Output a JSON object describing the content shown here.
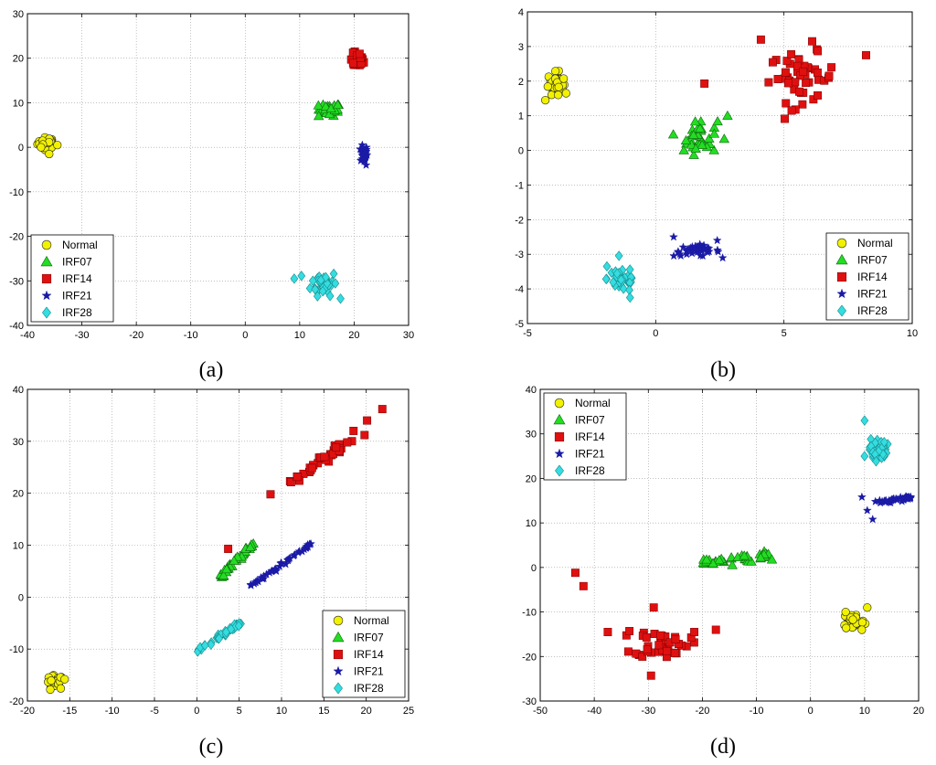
{
  "figure_labels": [
    "(a)",
    "(b)",
    "(c)",
    "(d)"
  ],
  "colors": {
    "Normal": "#f2f200",
    "IRF07": "#22dd22",
    "IRF14": "#e01010",
    "IRF21": "#1a1aa6",
    "IRF28": "#33dde0"
  },
  "chart_data": [
    {
      "type": "scatter",
      "id": "a",
      "label": "(a)",
      "xlim": [
        -40,
        30
      ],
      "ylim": [
        -40,
        30
      ],
      "xticks": [
        -40,
        -30,
        -20,
        -10,
        0,
        10,
        20,
        30
      ],
      "yticks": [
        -40,
        -30,
        -20,
        -10,
        0,
        10,
        20,
        30
      ],
      "legend_position": "bottom-left",
      "series": [
        {
          "name": "Normal",
          "marker": "circle",
          "center": [
            -36.5,
            1
          ],
          "spread": [
            0.8,
            0.6
          ],
          "count": 35,
          "extra": [
            [
              -34.5,
              0.5
            ],
            [
              -36,
              -1.5
            ],
            [
              -37.5,
              0
            ]
          ]
        },
        {
          "name": "IRF07",
          "marker": "triangle",
          "center": [
            15.5,
            8.5
          ],
          "spread": [
            1.0,
            0.7
          ],
          "count": 30,
          "extra": [
            [
              13.5,
              7
            ],
            [
              17,
              9.5
            ]
          ]
        },
        {
          "name": "IRF14",
          "marker": "square",
          "center": [
            20.5,
            19.5
          ],
          "spread": [
            0.6,
            0.8
          ],
          "count": 40,
          "extra": [
            [
              21,
              21
            ]
          ]
        },
        {
          "name": "IRF21",
          "marker": "star",
          "center": [
            21.8,
            -1.5
          ],
          "spread": [
            0.3,
            1.0
          ],
          "count": 40,
          "extra": [
            [
              22.2,
              -4
            ],
            [
              21.5,
              0.5
            ]
          ]
        },
        {
          "name": "IRF28",
          "marker": "diamond",
          "center": [
            14.5,
            -30.5
          ],
          "spread": [
            1.2,
            1.4
          ],
          "count": 40,
          "extra": [
            [
              9,
              -29.5
            ],
            [
              17.5,
              -34
            ]
          ]
        }
      ]
    },
    {
      "type": "scatter",
      "id": "b",
      "label": "(b)",
      "xlim": [
        -5,
        10
      ],
      "ylim": [
        -5,
        4
      ],
      "xticks": [
        -5,
        0,
        5,
        10
      ],
      "yticks": [
        -5,
        -4,
        -3,
        -2,
        -1,
        0,
        1,
        2,
        3,
        4
      ],
      "legend_position": "bottom-right",
      "series": [
        {
          "name": "Normal",
          "marker": "circle",
          "center": [
            -3.9,
            1.95
          ],
          "spread": [
            0.15,
            0.15
          ],
          "count": 35,
          "extra": [
            [
              -4.3,
              1.45
            ],
            [
              -3.8,
              1.6
            ]
          ]
        },
        {
          "name": "IRF07",
          "marker": "triangle",
          "center": [
            1.7,
            0.4
          ],
          "spread": [
            0.35,
            0.25
          ],
          "count": 35,
          "extra": [
            [
              2.8,
              1.0
            ],
            [
              1.1,
              0.0
            ]
          ]
        },
        {
          "name": "IRF14",
          "marker": "square",
          "center": [
            5.7,
            2.1
          ],
          "spread": [
            0.65,
            0.35
          ],
          "count": 45,
          "extra": [
            [
              4.1,
              3.2
            ],
            [
              1.9,
              1.93
            ],
            [
              8.2,
              2.75
            ],
            [
              6.1,
              3.15
            ],
            [
              5.3,
              1.15
            ]
          ]
        },
        {
          "name": "IRF21",
          "marker": "star",
          "center": [
            1.6,
            -2.9
          ],
          "spread": [
            0.45,
            0.08
          ],
          "count": 40,
          "extra": [
            [
              0.7,
              -2.5
            ],
            [
              2.4,
              -2.6
            ]
          ]
        },
        {
          "name": "IRF28",
          "marker": "diamond",
          "center": [
            -1.3,
            -3.7
          ],
          "spread": [
            0.3,
            0.2
          ],
          "count": 40,
          "extra": [
            [
              -1.9,
              -3.35
            ],
            [
              -1.0,
              -4.25
            ]
          ]
        }
      ]
    },
    {
      "type": "scatter",
      "id": "c",
      "label": "(c)",
      "xlim": [
        -20,
        25
      ],
      "ylim": [
        -20,
        40
      ],
      "xticks": [
        -20,
        -15,
        -10,
        -5,
        0,
        5,
        10,
        15,
        20,
        25
      ],
      "yticks": [
        -20,
        -10,
        0,
        10,
        20,
        30,
        40
      ],
      "legend_position": "bottom-right",
      "series": [
        {
          "name": "Normal",
          "marker": "circle",
          "center": [
            -16.8,
            -16.5
          ],
          "spread": [
            0.5,
            0.7
          ],
          "count": 35,
          "extra": [
            [
              -15.6,
              -15.8
            ],
            [
              -17.3,
              -17.8
            ]
          ]
        },
        {
          "name": "IRF07",
          "marker": "triangle",
          "line": [
            [
              2.7,
              3.8
            ],
            [
              6.7,
              10.5
            ]
          ],
          "jitter": [
            0.3,
            0.5
          ],
          "count": 40,
          "extra": []
        },
        {
          "name": "IRF14",
          "marker": "square",
          "line": [
            [
              11,
              22
            ],
            [
              18,
              30
            ]
          ],
          "jitter": [
            0.4,
            0.8
          ],
          "count": 35,
          "extra": [
            [
              3.7,
              9.3
            ],
            [
              8.7,
              19.8
            ],
            [
              18.5,
              32
            ],
            [
              20.1,
              34
            ],
            [
              21.9,
              36.2
            ],
            [
              19.8,
              31.2
            ]
          ]
        },
        {
          "name": "IRF21",
          "marker": "star",
          "line": [
            [
              6.5,
              2.2
            ],
            [
              13.5,
              10.3
            ]
          ],
          "jitter": [
            0.2,
            0.3
          ],
          "count": 45,
          "extra": []
        },
        {
          "name": "IRF28",
          "marker": "diamond",
          "line": [
            [
              0,
              -10.5
            ],
            [
              5,
              -5
            ]
          ],
          "jitter": [
            0.3,
            0.4
          ],
          "count": 40,
          "extra": []
        }
      ]
    },
    {
      "type": "scatter",
      "id": "d",
      "label": "(d)",
      "xlim": [
        -50,
        20
      ],
      "ylim": [
        -30,
        40
      ],
      "xticks": [
        -50,
        -40,
        -30,
        -20,
        -10,
        0,
        10,
        20
      ],
      "yticks": [
        -30,
        -20,
        -10,
        0,
        10,
        20,
        30,
        40
      ],
      "legend_position": "top-left",
      "series": [
        {
          "name": "Normal",
          "marker": "circle",
          "center": [
            8,
            -12
          ],
          "spread": [
            1.0,
            1.0
          ],
          "count": 35,
          "extra": [
            [
              10.5,
              -9
            ],
            [
              6.5,
              -10
            ],
            [
              9.5,
              -14
            ]
          ]
        },
        {
          "name": "IRF07",
          "marker": "triangle",
          "line": [
            [
              -20,
              1.2
            ],
            [
              -7.5,
              2.8
            ]
          ],
          "jitter": [
            0.8,
            1.0
          ],
          "count": 40,
          "extra": []
        },
        {
          "name": "IRF14",
          "marker": "square",
          "center": [
            -27.5,
            -17
          ],
          "spread": [
            2.5,
            1.6
          ],
          "count": 40,
          "extra": [
            [
              -43.5,
              -1.2
            ],
            [
              -42,
              -4.2
            ],
            [
              -37.5,
              -14.5
            ],
            [
              -33.5,
              -14.3
            ],
            [
              -29,
              -9
            ],
            [
              -21.5,
              -14.5
            ],
            [
              -17.5,
              -14
            ],
            [
              -29.5,
              -24.3
            ]
          ]
        },
        {
          "name": "IRF21",
          "marker": "star",
          "line": [
            [
              12.5,
              14.5
            ],
            [
              18.5,
              15.7
            ]
          ],
          "jitter": [
            0.5,
            0.4
          ],
          "count": 40,
          "extra": [
            [
              9.5,
              15.8
            ],
            [
              11.5,
              10.8
            ],
            [
              10.5,
              12.8
            ],
            [
              12,
              14.8
            ]
          ]
        },
        {
          "name": "IRF28",
          "marker": "diamond",
          "center": [
            12.5,
            26.5
          ],
          "spread": [
            0.8,
            1.2
          ],
          "count": 40,
          "extra": [
            [
              10,
              33
            ],
            [
              10,
              25
            ]
          ]
        }
      ]
    }
  ]
}
